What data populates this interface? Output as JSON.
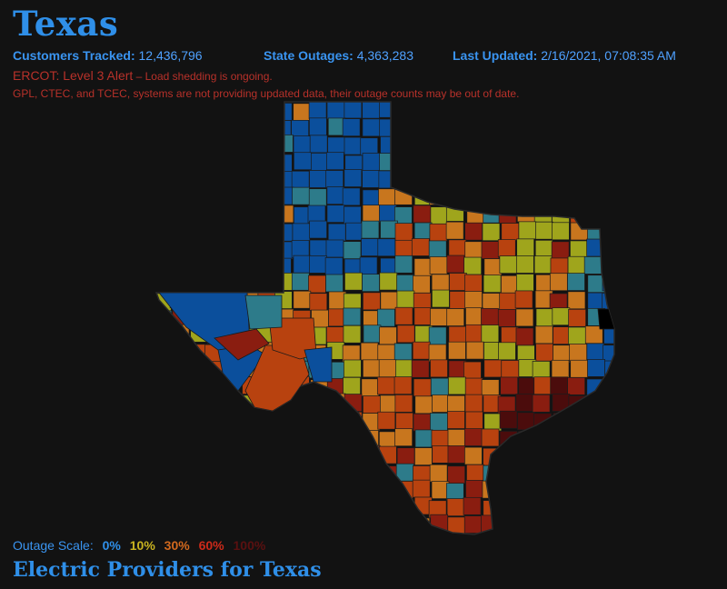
{
  "state": "Texas",
  "stats": [
    {
      "label": "Customers Tracked:",
      "value": "12,436,796"
    },
    {
      "label": "State Outages:",
      "value": "4,363,283"
    },
    {
      "label": "Last Updated:",
      "value": "2/16/2021, 07:08:35 AM"
    }
  ],
  "alert": {
    "main": "ERCOT: Level 3 Alert",
    "sub": " – Load shedding is ongoing."
  },
  "notice": "GPL, CTEC, and TCEC, systems are not providing updated data, their outage counts may be out of date.",
  "legend": {
    "label": "Outage Scale:",
    "ticks": [
      {
        "text": "0%",
        "color": "#2f8fe8"
      },
      {
        "text": "10%",
        "color": "#c9b320"
      },
      {
        "text": "30%",
        "color": "#d2691e"
      },
      {
        "text": "60%",
        "color": "#cc2a1a"
      },
      {
        "text": "100%",
        "color": "#5a1010"
      }
    ]
  },
  "providers_heading": "Electric Providers for Texas",
  "colors": {
    "background": "#121212",
    "accent": "#2f8fe8",
    "alert": "#b8312a",
    "scale": [
      "#0b4f9c",
      "#2d7b8a",
      "#9fa51c",
      "#c8761e",
      "#b8420f",
      "#8a1d10",
      "#4b0c0c",
      "#000000"
    ]
  }
}
